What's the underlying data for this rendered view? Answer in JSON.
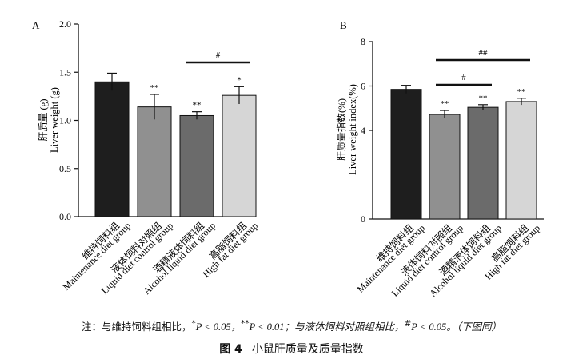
{
  "chart_data": [
    {
      "type": "bar",
      "panel_label": "A",
      "ylabel_cn": "肝质量 (g)",
      "ylabel_en": "Liver weight (g)",
      "ylim": [
        0,
        2.0
      ],
      "yticks": [
        "0.0",
        "0.5",
        "1.0",
        "1.5",
        "2.0"
      ],
      "categories": [
        {
          "cn": "维持饲料组",
          "en": "Maintenance diet group"
        },
        {
          "cn": "液体饲料对照组",
          "en": "Liquid diet control group"
        },
        {
          "cn": "酒精液体饲料组",
          "en": "Alcohol liquid diet group"
        },
        {
          "cn": "高脂饲料组",
          "en": "High fat diet group"
        }
      ],
      "values": [
        1.4,
        1.14,
        1.05,
        1.26
      ],
      "errors": [
        0.09,
        0.13,
        0.04,
        0.09
      ],
      "colors": [
        "#1e1e1e",
        "#909090",
        "#6b6b6b",
        "#d6d6d6"
      ],
      "marks": [
        "",
        "**",
        "**",
        "*"
      ],
      "comparisons": [
        {
          "from": 2,
          "to": 3,
          "label": "#"
        }
      ]
    },
    {
      "type": "bar",
      "panel_label": "B",
      "ylabel_cn": "肝质量指数(%)",
      "ylabel_en": "Liver weight index(%)",
      "ylim": [
        0,
        8
      ],
      "yticks": [
        "0",
        "4",
        "6",
        "8"
      ],
      "categories": [
        {
          "cn": "维持饲料组",
          "en": "Maintenance diet group"
        },
        {
          "cn": "液体饲料对照组",
          "en": "Liquid diet control group"
        },
        {
          "cn": "酒精液体饲料组",
          "en": "Alcohol liquid diet group"
        },
        {
          "cn": "高脂饲料组",
          "en": "High fat diet group"
        }
      ],
      "values": [
        5.85,
        4.72,
        5.04,
        5.3
      ],
      "errors": [
        0.18,
        0.18,
        0.12,
        0.15
      ],
      "colors": [
        "#1e1e1e",
        "#909090",
        "#6b6b6b",
        "#d6d6d6"
      ],
      "marks": [
        "",
        "**",
        "**",
        "**"
      ],
      "comparisons": [
        {
          "from": 1,
          "to": 2,
          "label": "#"
        },
        {
          "from": 1,
          "to": 3,
          "label": "##"
        }
      ]
    }
  ],
  "note": {
    "prefix": "注：与维持饲料组相比，",
    "p1_sup": "*",
    "p1_text": "P < 0.05，",
    "p2_sup": "**",
    "p2_text": "P < 0.01；与液体饲料对照组相比，",
    "p3_sup": "#",
    "p3_text": "P < 0.05。（下图同）"
  },
  "caption": {
    "number": "图 4",
    "title": "小鼠肝质量及质量指数"
  }
}
